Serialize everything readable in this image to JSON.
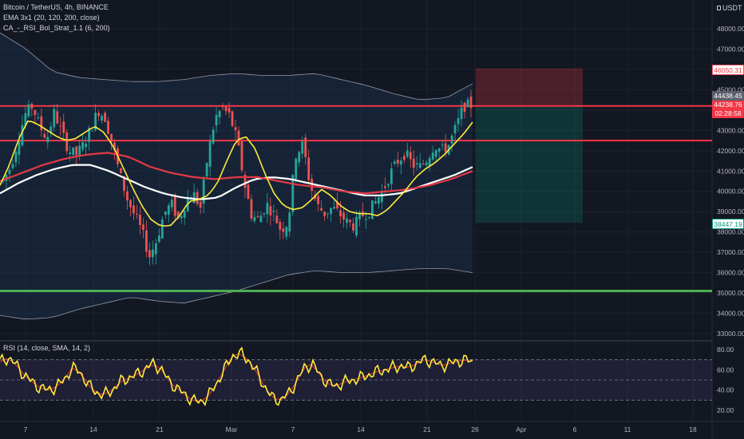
{
  "header": {
    "title": "Bitcoin / TetherUS, 4h, BINANCE",
    "indicator_ema": "EMA 3x1 (20, 120, 200, close)",
    "indicator_strategy": "CA_-_RSI_Bol_Strat_1.1 (6, 200)",
    "indicator_rsi": "RSI (14, close, SMA, 14, 2)",
    "currency": "USDT"
  },
  "price_axis": {
    "ticks": [
      "48000.00",
      "47000.00",
      "46000.00",
      "45000.00",
      "44000.00",
      "43000.00",
      "42000.00",
      "41000.00",
      "40000.00",
      "39000.00",
      "38000.00",
      "37000.00",
      "36000.00",
      "35000.00",
      "34000.00",
      "33000.00"
    ]
  },
  "rsi_axis": {
    "ticks": [
      "80.00",
      "60.00",
      "40.00",
      "20.00"
    ]
  },
  "time_axis": {
    "labels": [
      "7",
      "14",
      "21",
      "Mar",
      "7",
      "14",
      "21",
      "26",
      "Apr",
      "6",
      "11",
      "18"
    ]
  },
  "price_tags": {
    "target": "46050.31",
    "last_high": "44438.45",
    "current": "44238.76",
    "countdown": "02:28:58",
    "stop": "38447.19"
  },
  "levels": {
    "resistance_top": 44200,
    "resistance_mid": 42500,
    "support": 35100
  },
  "position": {
    "entry": 44238.76,
    "target": 46050.31,
    "stop": 38447.19
  },
  "colors": {
    "background": "#131722",
    "candle_up": "#26a69a",
    "candle_down": "#ef5350",
    "ema20": "#ffeb3b",
    "ema120": "#ffffff",
    "ema200": "#e53945",
    "resistance": "#f23645",
    "support": "#4caf50",
    "rsi": "#ffeb3b",
    "rsi_ma": "#e53935"
  },
  "chart_data": {
    "type": "candlestick",
    "title": "Bitcoin / TetherUS, 4h, BINANCE",
    "x_labels": [
      "7",
      "14",
      "21",
      "Mar",
      "7",
      "14",
      "21",
      "26"
    ],
    "ylim": [
      33000,
      48500
    ],
    "close_path": [
      40500,
      41200,
      42500,
      43800,
      44200,
      43200,
      42600,
      43900,
      42900,
      42000,
      41800,
      42300,
      43100,
      44000,
      43600,
      42200,
      40800,
      39600,
      38800,
      38000,
      36800,
      37600,
      38900,
      39400,
      38600,
      39500,
      39900,
      39200,
      41800,
      43600,
      44100,
      43700,
      42500,
      40400,
      38800,
      38600,
      39400,
      38900,
      38100,
      38500,
      41800,
      42300,
      40300,
      39300,
      38900,
      39200,
      38900,
      38500,
      38300,
      38800,
      39000,
      39500,
      40100,
      40900,
      41500,
      41900,
      41300,
      41200,
      41600,
      42300,
      42000,
      42300,
      43200,
      44200,
      44240
    ],
    "ema20": [
      40300,
      41300,
      42600,
      43500,
      43300,
      43000,
      42700,
      42500,
      42600,
      42900,
      43200,
      42900,
      42200,
      41200,
      40200,
      39300,
      38600,
      38300,
      38300,
      38800,
      39500,
      39600,
      39800,
      40400,
      41500,
      42500,
      42700,
      42100,
      40900,
      39900,
      39300,
      39100,
      39200,
      39600,
      40100,
      39800,
      39300,
      39000,
      38900,
      38900,
      38800,
      39100,
      39600,
      40100,
      40700,
      41100,
      41400,
      41800,
      42300,
      42800,
      43400
    ],
    "ema120": [
      39900,
      40400,
      40800,
      41100,
      41300,
      41300,
      41000,
      40600,
      40200,
      39900,
      39700,
      39600,
      39700,
      40200,
      40600,
      40700,
      40600,
      40400,
      40200,
      40000,
      39800,
      39800,
      39900,
      40200,
      40500,
      40800,
      41200
    ],
    "ema200": [
      40500,
      40900,
      41300,
      41600,
      41800,
      41900,
      41700,
      41200,
      40900,
      40700,
      40600,
      40700,
      40700,
      40500,
      40300,
      40200,
      40000,
      39900,
      40000,
      40100,
      40300,
      40600,
      41000
    ]
  }
}
